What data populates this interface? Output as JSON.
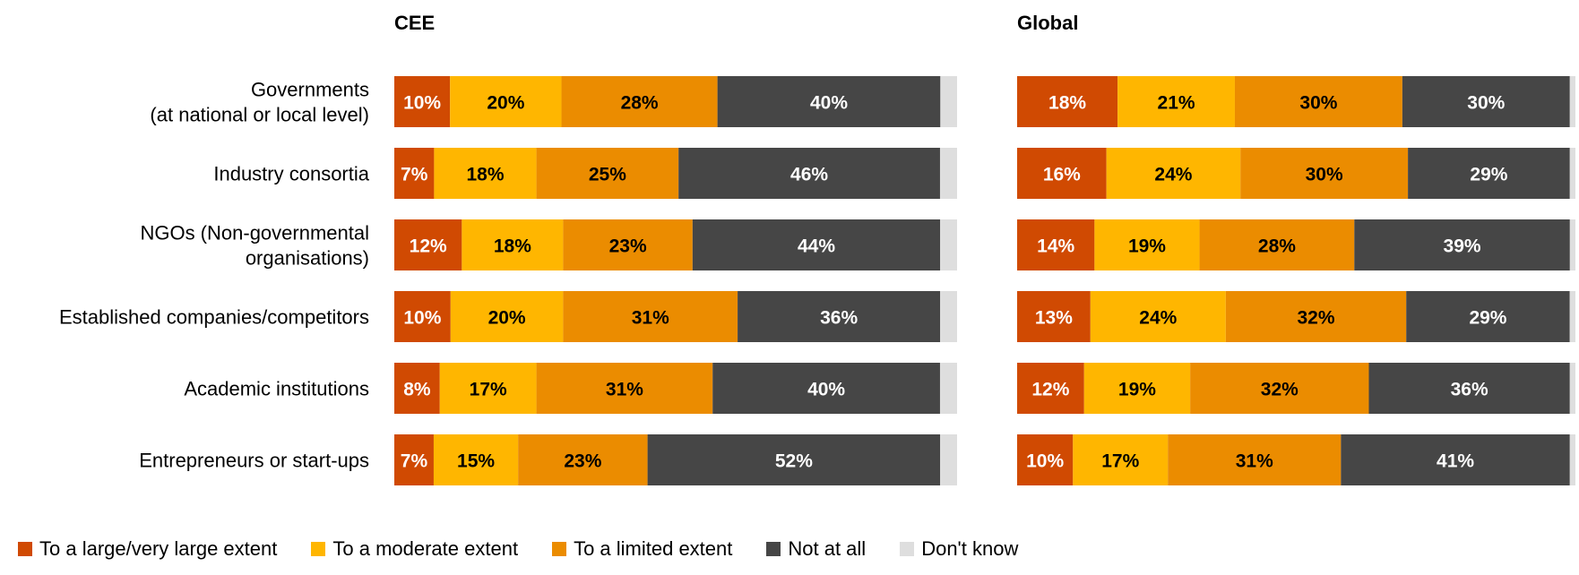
{
  "chart_data": {
    "type": "bar",
    "orientation": "horizontal",
    "stacked": true,
    "categories": [
      [
        "Governments",
        "(at national or local level)"
      ],
      [
        "Industry consortia"
      ],
      [
        "NGOs (Non-governmental",
        "organisations)"
      ],
      [
        "Established companies/competitors"
      ],
      [
        "Academic institutions"
      ],
      [
        "Entrepreneurs or start-ups"
      ]
    ],
    "panels": [
      {
        "title": "CEE",
        "series": [
          {
            "name": "To a large/very large extent",
            "values": [
              10,
              7,
              12,
              10,
              8,
              7
            ]
          },
          {
            "name": "To a moderate extent",
            "values": [
              20,
              18,
              18,
              20,
              17,
              15
            ]
          },
          {
            "name": "To a limited extent",
            "values": [
              28,
              25,
              23,
              31,
              31,
              23
            ]
          },
          {
            "name": "Not at all",
            "values": [
              40,
              46,
              44,
              36,
              40,
              52
            ]
          },
          {
            "name": "Don't know",
            "values": [
              3,
              3,
              3,
              3,
              3,
              3
            ]
          }
        ]
      },
      {
        "title": "Global",
        "series": [
          {
            "name": "To a large/very large extent",
            "values": [
              18,
              16,
              14,
              13,
              12,
              10
            ]
          },
          {
            "name": "To a moderate extent",
            "values": [
              21,
              24,
              19,
              24,
              19,
              17
            ]
          },
          {
            "name": "To a limited extent",
            "values": [
              30,
              30,
              28,
              32,
              32,
              31
            ]
          },
          {
            "name": "Not at all",
            "values": [
              30,
              29,
              39,
              29,
              36,
              41
            ]
          },
          {
            "name": "Don't know",
            "values": [
              1,
              1,
              1,
              1,
              1,
              1
            ]
          }
        ]
      }
    ],
    "value_format": "{v}%",
    "labeled_series": [
      0,
      1,
      2,
      3
    ],
    "colors": [
      "#D04A02",
      "#FFB600",
      "#EB8C00",
      "#464646",
      "#DEDEDE"
    ],
    "label_colors": [
      "#FFFFFF",
      "#000000",
      "#000000",
      "#FFFFFF"
    ],
    "legend": [
      "To a large/very large extent",
      "To a moderate extent",
      "To a limited extent",
      "Not at all",
      "Don't know"
    ],
    "legend_position": "bottom",
    "grid": false
  }
}
